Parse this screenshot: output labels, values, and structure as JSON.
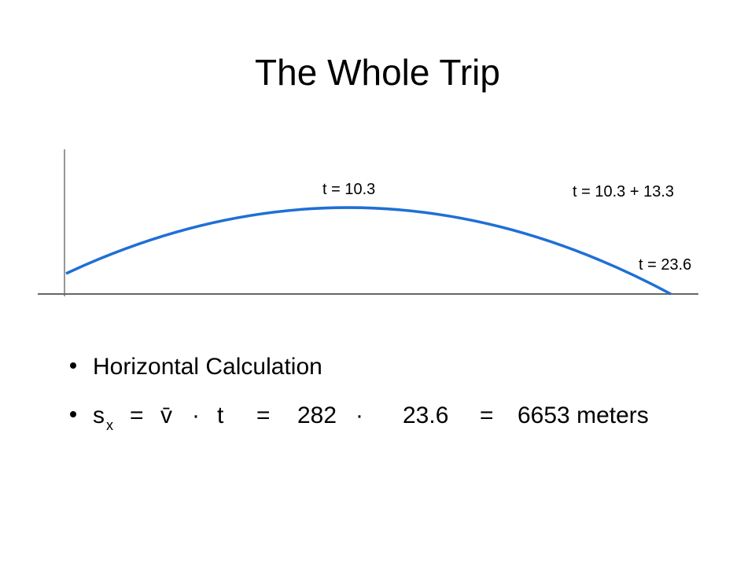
{
  "title": "The Whole Trip",
  "figure": {
    "labels": [
      "t = 10.3",
      "t = 10.3 + 13.3",
      "t = 23.6"
    ]
  },
  "bullets": {
    "line1": "Horizontal Calculation",
    "line2": [
      "s",
      "x",
      "=",
      "v̄",
      "·",
      "t",
      "=",
      "282",
      "·",
      "23.6",
      "=",
      "6653 meters"
    ]
  }
}
